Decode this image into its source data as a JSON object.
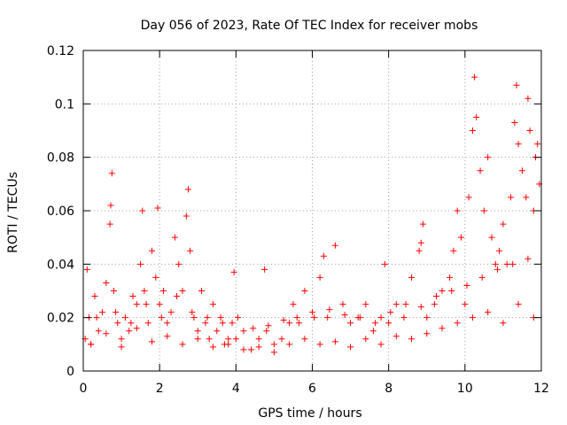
{
  "chart_data": {
    "type": "scatter",
    "title": "Day 056 of 2023, Rate Of TEC Index for receiver mobs",
    "xlabel": "GPS time / hours",
    "ylabel": "ROTI / TECUs",
    "xlim": [
      0,
      12
    ],
    "ylim": [
      0,
      0.12
    ],
    "x_ticks": [
      0,
      2,
      4,
      6,
      8,
      10,
      12
    ],
    "x_tick_labels": [
      "0",
      "2",
      "4",
      "6",
      "8",
      "10",
      "12"
    ],
    "y_ticks": [
      0,
      0.02,
      0.04,
      0.06,
      0.08,
      0.1,
      0.12
    ],
    "y_tick_labels": [
      "0",
      "0.02",
      "0.04",
      "0.06",
      "0.08",
      "0.1",
      "0.12"
    ],
    "grid": true,
    "marker": "+",
    "color": "#ff0000",
    "series": [
      {
        "name": "ROTI",
        "x": [
          0.05,
          0.1,
          0.15,
          0.2,
          0.3,
          0.4,
          0.5,
          0.6,
          0.7,
          0.72,
          0.75,
          0.8,
          0.9,
          1.0,
          1.1,
          1.2,
          1.3,
          1.4,
          1.5,
          1.55,
          1.6,
          1.7,
          1.8,
          1.9,
          1.95,
          2.0,
          2.1,
          2.2,
          2.3,
          2.4,
          2.5,
          2.6,
          2.7,
          2.75,
          2.8,
          2.9,
          3.0,
          3.1,
          3.2,
          3.3,
          3.4,
          3.5,
          3.6,
          3.7,
          3.8,
          3.9,
          3.95,
          4.0,
          4.2,
          4.4,
          4.6,
          4.75,
          4.8,
          5.0,
          5.2,
          5.4,
          5.5,
          5.6,
          5.8,
          6.0,
          6.2,
          6.3,
          6.4,
          6.6,
          6.8,
          7.0,
          7.2,
          7.4,
          7.6,
          7.8,
          7.9,
          8.0,
          8.2,
          8.4,
          8.6,
          8.8,
          8.85,
          8.9,
          9.0,
          9.2,
          9.4,
          9.6,
          9.7,
          9.8,
          9.9,
          10.0,
          10.1,
          10.2,
          10.25,
          10.3,
          10.4,
          10.5,
          10.6,
          10.7,
          10.8,
          10.9,
          11.0,
          11.1,
          11.2,
          11.3,
          11.35,
          11.4,
          11.5,
          11.6,
          11.65,
          11.7,
          11.8,
          11.85,
          11.9,
          11.95,
          0.2,
          0.6,
          1.0,
          1.4,
          1.8,
          2.2,
          2.6,
          3.0,
          3.4,
          3.8,
          4.2,
          4.6,
          5.0,
          5.4,
          5.8,
          6.2,
          6.6,
          7.0,
          7.4,
          7.8,
          8.2,
          8.6,
          9.0,
          9.4,
          9.8,
          10.2,
          10.6,
          11.0,
          11.4,
          11.8,
          0.35,
          0.85,
          1.25,
          1.65,
          2.05,
          2.45,
          2.85,
          3.25,
          3.65,
          4.05,
          4.45,
          4.85,
          5.25,
          5.65,
          6.05,
          6.45,
          6.85,
          7.25,
          7.65,
          8.05,
          8.45,
          8.85,
          9.25,
          9.65,
          10.05,
          10.45,
          10.85,
          11.25,
          11.65
        ],
        "y": [
          0.012,
          0.038,
          0.02,
          0.01,
          0.028,
          0.015,
          0.022,
          0.033,
          0.055,
          0.062,
          0.074,
          0.03,
          0.018,
          0.012,
          0.02,
          0.015,
          0.028,
          0.025,
          0.04,
          0.06,
          0.03,
          0.018,
          0.045,
          0.035,
          0.061,
          0.025,
          0.03,
          0.018,
          0.022,
          0.05,
          0.04,
          0.03,
          0.058,
          0.068,
          0.045,
          0.02,
          0.015,
          0.03,
          0.018,
          0.012,
          0.025,
          0.015,
          0.02,
          0.01,
          0.012,
          0.018,
          0.037,
          0.012,
          0.015,
          0.008,
          0.012,
          0.038,
          0.015,
          0.01,
          0.012,
          0.018,
          0.025,
          0.02,
          0.03,
          0.022,
          0.035,
          0.043,
          0.02,
          0.047,
          0.025,
          0.018,
          0.02,
          0.025,
          0.015,
          0.02,
          0.04,
          0.018,
          0.025,
          0.02,
          0.035,
          0.045,
          0.048,
          0.055,
          0.02,
          0.025,
          0.03,
          0.035,
          0.045,
          0.06,
          0.05,
          0.025,
          0.065,
          0.09,
          0.11,
          0.095,
          0.075,
          0.06,
          0.08,
          0.05,
          0.04,
          0.045,
          0.055,
          0.04,
          0.065,
          0.093,
          0.107,
          0.085,
          0.075,
          0.065,
          0.102,
          0.09,
          0.06,
          0.08,
          0.085,
          0.07,
          0.01,
          0.014,
          0.009,
          0.016,
          0.011,
          0.013,
          0.01,
          0.012,
          0.009,
          0.01,
          0.008,
          0.009,
          0.007,
          0.01,
          0.012,
          0.01,
          0.011,
          0.009,
          0.012,
          0.01,
          0.013,
          0.012,
          0.014,
          0.016,
          0.018,
          0.02,
          0.022,
          0.018,
          0.025,
          0.02,
          0.02,
          0.022,
          0.018,
          0.025,
          0.02,
          0.028,
          0.022,
          0.02,
          0.018,
          0.02,
          0.016,
          0.017,
          0.019,
          0.018,
          0.02,
          0.023,
          0.021,
          0.02,
          0.018,
          0.022,
          0.025,
          0.024,
          0.028,
          0.03,
          0.032,
          0.035,
          0.038,
          0.04,
          0.042
        ]
      }
    ]
  }
}
